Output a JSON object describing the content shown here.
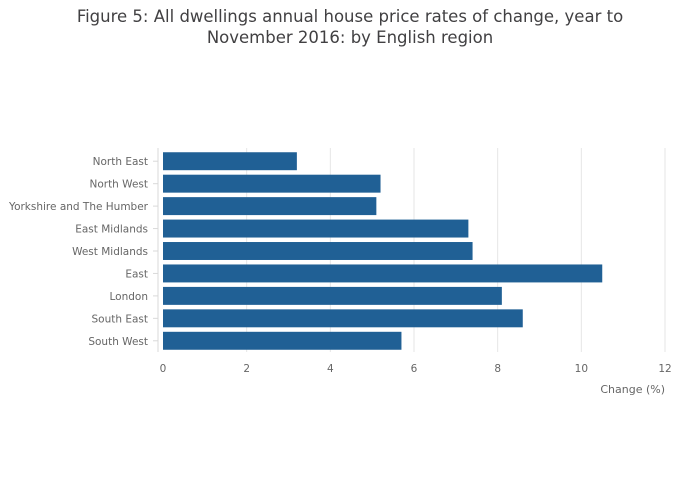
{
  "chart_data": {
    "type": "bar",
    "orientation": "horizontal",
    "title_lines": [
      "Figure 5: All dwellings annual house price rates of change, year to",
      "November 2016: by English region"
    ],
    "categories": [
      "North East",
      "North West",
      "Yorkshire and The Humber",
      "East Midlands",
      "West Midlands",
      "East",
      "London",
      "South East",
      "South West"
    ],
    "values": [
      3.2,
      5.2,
      5.1,
      7.3,
      7.4,
      10.5,
      8.1,
      8.6,
      5.7
    ],
    "xlabel": "Change (%)",
    "ylabel": "",
    "xlim": [
      0,
      12
    ],
    "xticks": [
      0,
      2,
      4,
      6,
      8,
      10,
      12
    ],
    "grid": true,
    "bar_color": "#206095",
    "grid_color": "#e6e6e6"
  }
}
